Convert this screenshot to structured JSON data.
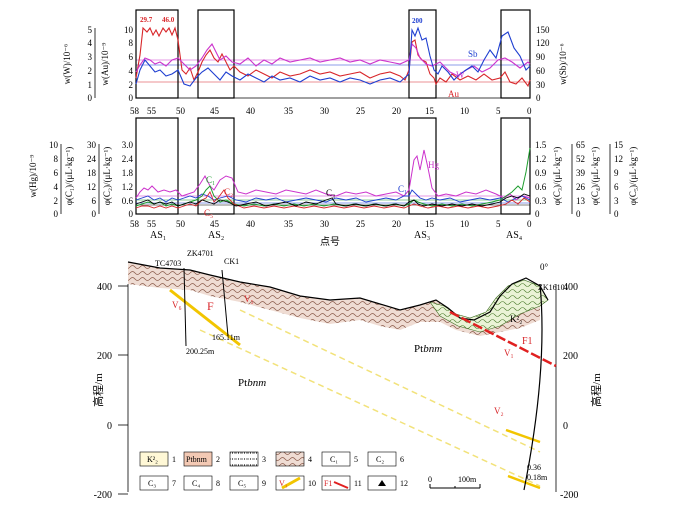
{
  "top_panel": {
    "y_left_labels": [
      "w(W)/10⁻⁶",
      "w(Au)/10⁻⁹"
    ],
    "y_right_label": "w(Sb)/10⁻⁶",
    "w_ticks": [
      "5",
      "4",
      "3",
      "2",
      "1",
      "0"
    ],
    "au_ticks": [
      "10",
      "8",
      "6",
      "4",
      "2",
      "0"
    ],
    "sb_ticks": [
      "150",
      "120",
      "90",
      "60",
      "30",
      "0"
    ],
    "x_ticks": [
      "58",
      "55",
      "50",
      "45",
      "40",
      "35",
      "30",
      "25",
      "20",
      "15",
      "10",
      "5",
      "0"
    ],
    "peak_labels": [
      "29.7",
      "46.0",
      "200"
    ],
    "series_labels": {
      "sb": "Sb",
      "w": "W",
      "au": "Au"
    },
    "colors": {
      "au": "#d8262a",
      "w": "#cc33cc",
      "sb": "#1f3fd1"
    }
  },
  "mid_panel": {
    "y_left_labels": [
      "w(Hg)/10⁻⁹",
      "φ(C₁)/(μL·kg⁻¹)",
      "φ(C₂)/(μL·kg⁻¹)"
    ],
    "y_right_labels": [
      "φ(C₃)/(μL·kg⁻¹)",
      "φ(C₄)/(μL·kg⁻¹)",
      "φ(C₅)/(μL·kg⁻¹)"
    ],
    "hg_ticks": [
      "10",
      "8",
      "6",
      "4",
      "2",
      "0"
    ],
    "c1_ticks": [
      "30",
      "24",
      "18",
      "12",
      "6",
      "0"
    ],
    "c2_ticks": [
      "3.0",
      "2.4",
      "1.8",
      "1.2",
      "0.6",
      "0"
    ],
    "c3_ticks": [
      "1.5",
      "1.2",
      "0.9",
      "0.6",
      "0.3",
      "0"
    ],
    "c4_ticks": [
      "65",
      "52",
      "39",
      "26",
      "13",
      "0"
    ],
    "c5_ticks": [
      "15",
      "12",
      "9",
      "6",
      "3",
      "0"
    ],
    "x_ticks": [
      "58",
      "55",
      "50",
      "45",
      "40",
      "35",
      "30",
      "25",
      "20",
      "15",
      "10",
      "5",
      "0"
    ],
    "series_labels": {
      "hg": "Hg",
      "c1": "C₁",
      "c2": "C₂",
      "c3": "C₃",
      "c4": "C₄",
      "c5": "C₅"
    },
    "colors": {
      "hg": "#cc33cc",
      "c1": "#1f3fd1",
      "c2": "#d8262a",
      "c3": "#000000",
      "c4": "#1e9e2e",
      "c5": "#d8262a"
    },
    "as_labels": [
      "AS₁",
      "AS₂",
      "AS₃",
      "AS₄"
    ],
    "xlabel": "点号"
  },
  "section": {
    "y_label": "高程/m",
    "elev_ticks": [
      "400",
      "200",
      "0",
      "-200"
    ],
    "drill_labels": [
      "TC4703",
      "ZK4701",
      "CK1",
      "ZK16101"
    ],
    "angle_label": "0°",
    "depth_labels": [
      "200.25m",
      "165.11m",
      "0.36",
      "0.18m"
    ],
    "unit_labels": [
      "Pt",
      "bnm"
    ],
    "k_label": "K²₂",
    "vein_labels": [
      "V₆",
      "V₅",
      "V₁",
      "V₂"
    ],
    "fault_labels": [
      "F",
      "F1"
    ]
  },
  "legend": {
    "items": [
      {
        "code": "K²₂",
        "num": "1"
      },
      {
        "code": "Ptbnm",
        "num": "2"
      },
      {
        "code": "",
        "num": "3"
      },
      {
        "code": "",
        "num": "4"
      },
      {
        "code": "C₁",
        "num": "5"
      },
      {
        "code": "C₂",
        "num": "6"
      },
      {
        "code": "C₃",
        "num": "7"
      },
      {
        "code": "C₄",
        "num": "8"
      },
      {
        "code": "C₅",
        "num": "9"
      },
      {
        "code": "V₁",
        "num": "10"
      },
      {
        "code": "F1",
        "num": "11"
      },
      {
        "code": "",
        "num": "12"
      }
    ],
    "scale_zero": "0",
    "scale_label": "100m"
  }
}
